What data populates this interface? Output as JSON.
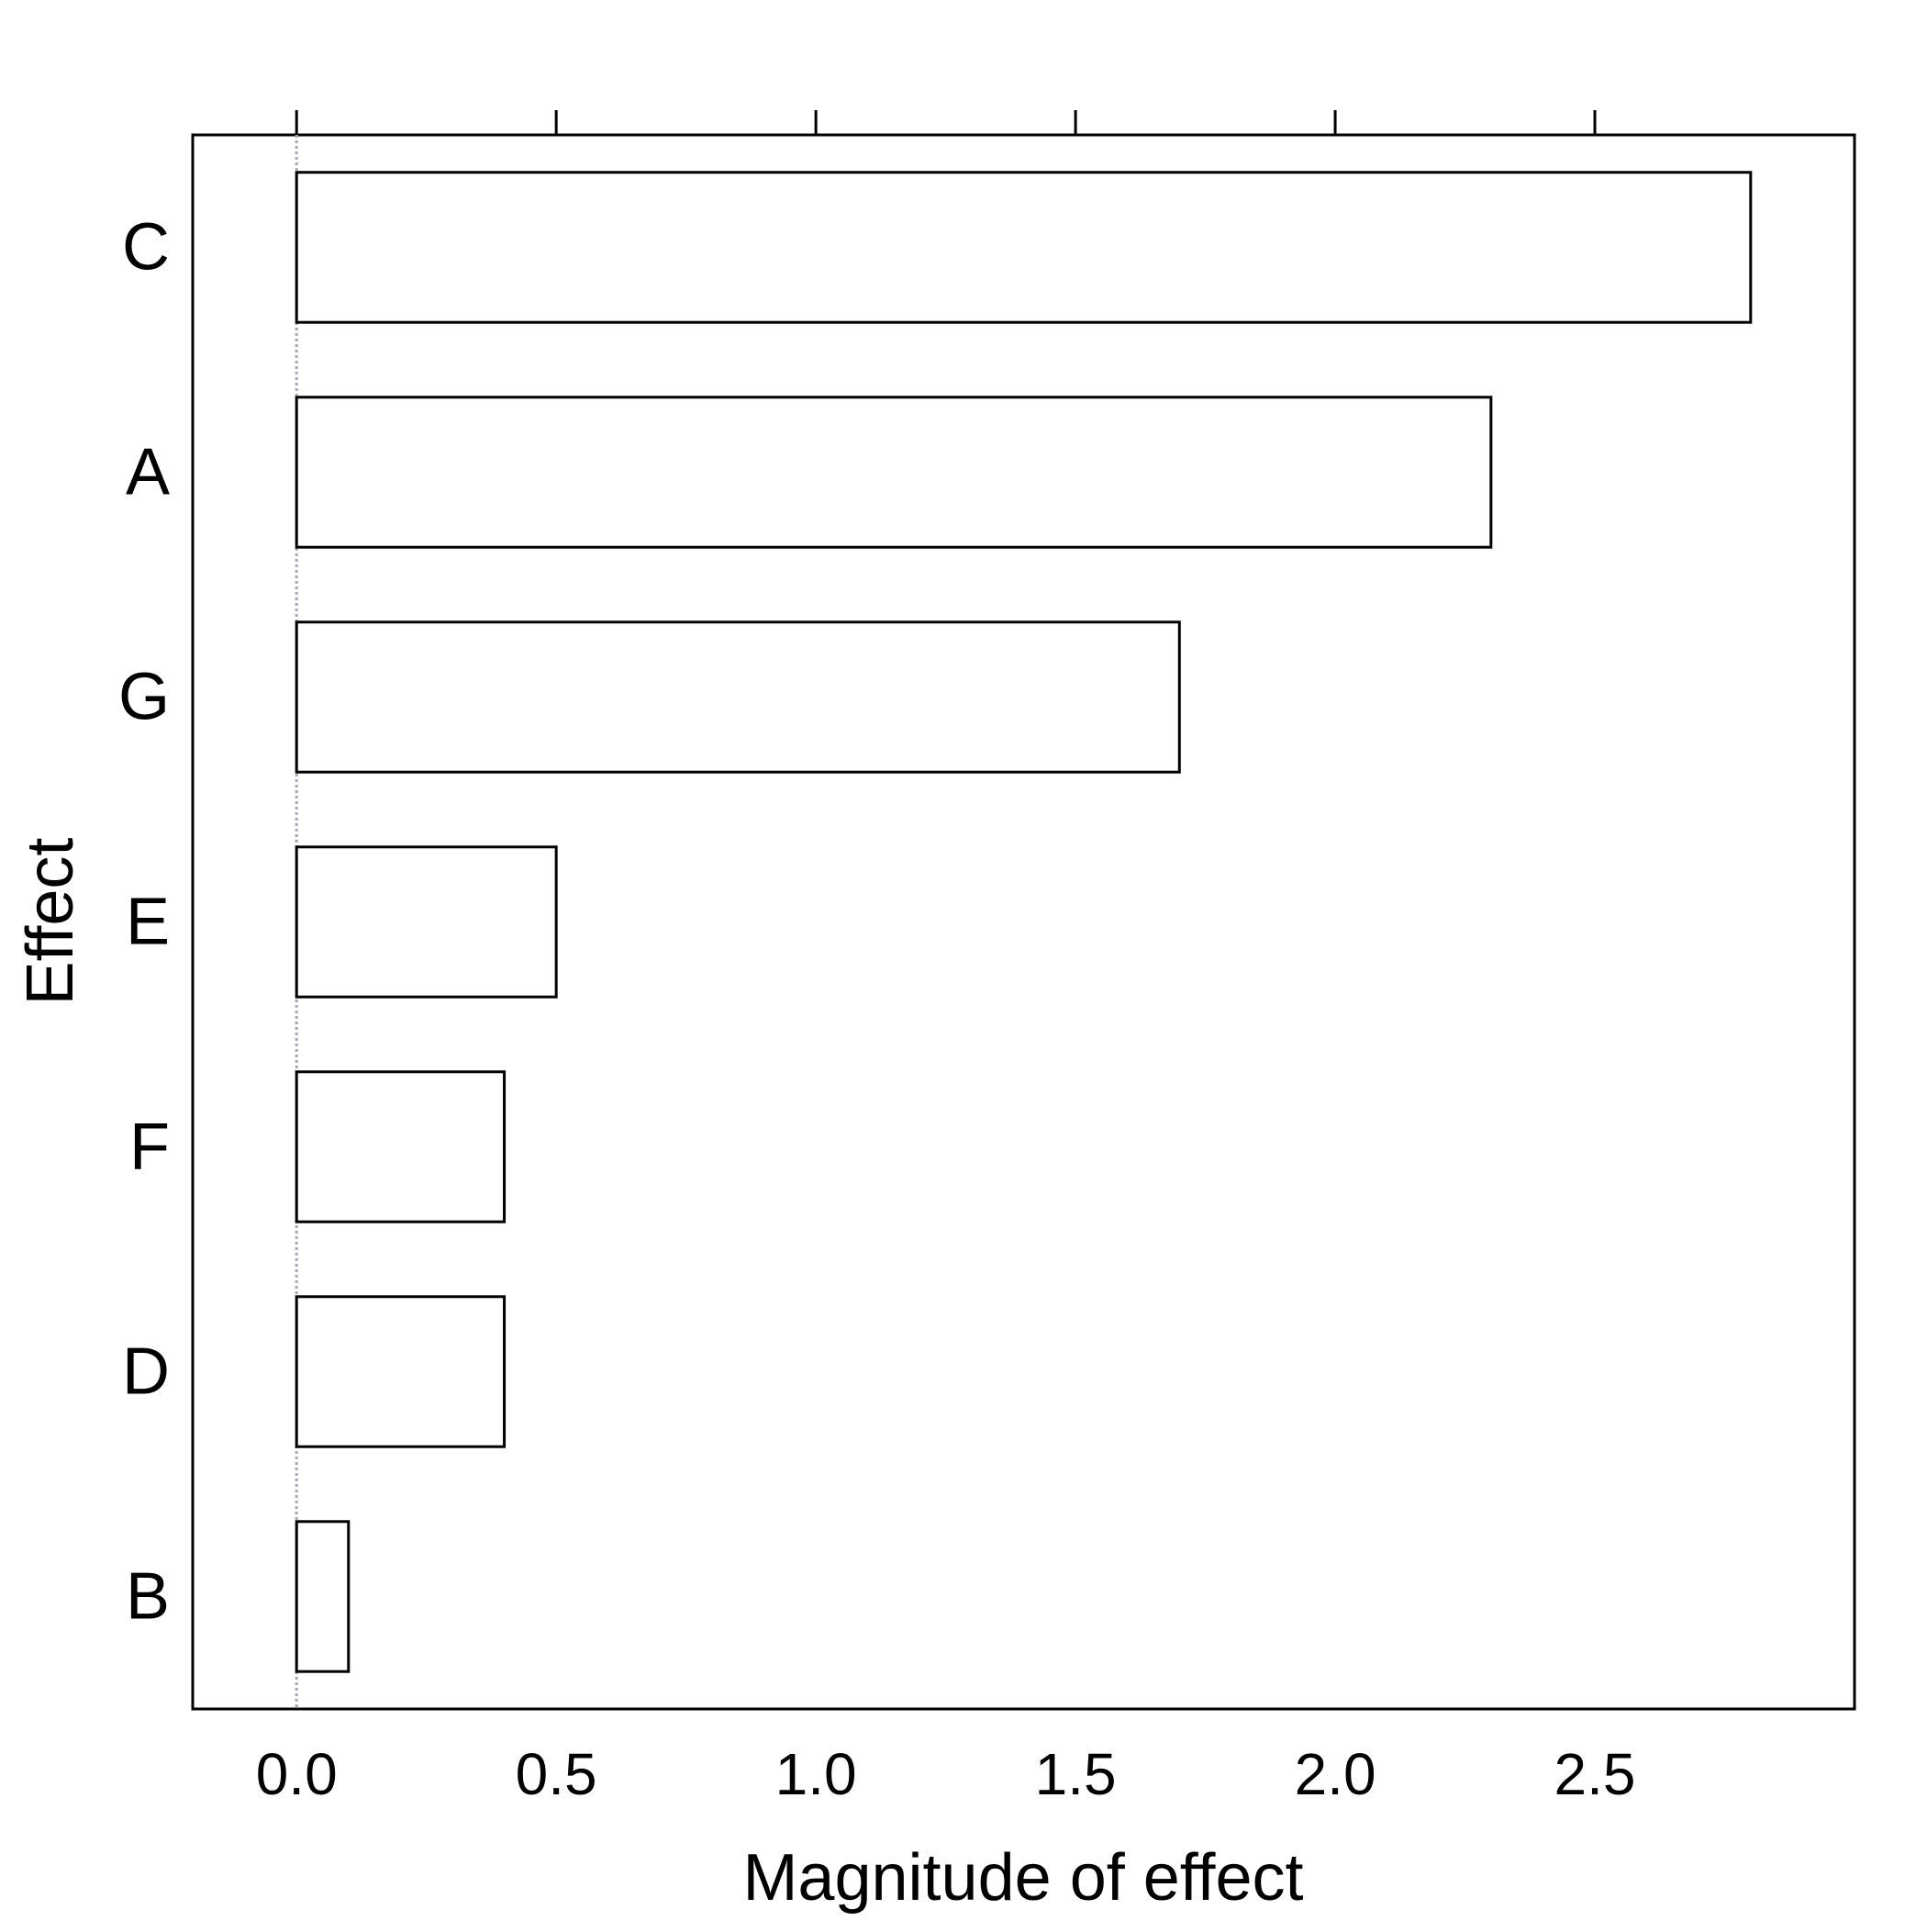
{
  "chart_data": {
    "type": "bar",
    "orientation": "horizontal",
    "title": "",
    "xlabel": "Magnitude of effect",
    "ylabel": "Effect",
    "categories": [
      "C",
      "A",
      "G",
      "E",
      "F",
      "D",
      "B"
    ],
    "values": [
      2.8,
      2.3,
      1.7,
      0.5,
      0.4,
      0.4,
      0.1
    ],
    "xlim": [
      -0.2,
      3.0
    ],
    "xticks": [
      0.0,
      0.5,
      1.0,
      1.5,
      2.0,
      2.5
    ],
    "xtick_labels": [
      "0.0",
      "0.5",
      "1.0",
      "1.5",
      "2.0",
      "2.5"
    ],
    "grid": false,
    "legend": "none",
    "bar_fill": "#ffffff",
    "bar_stroke": "#000000",
    "reference_line_color": "#a6a6c8"
  }
}
